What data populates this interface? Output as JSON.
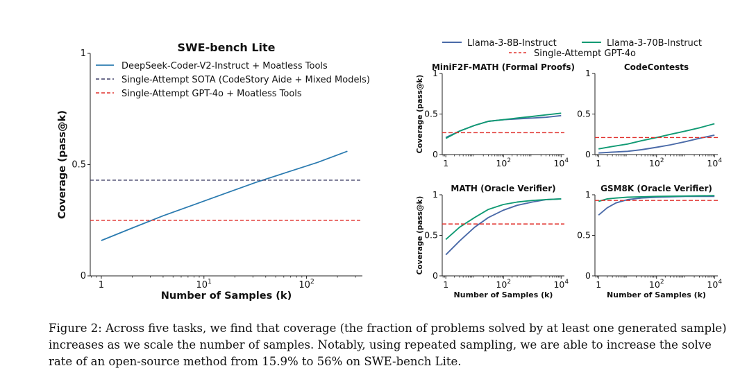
{
  "caption": {
    "label": "Figure 2:",
    "text": "Across five tasks, we find that coverage (the fraction of problems solved by at least one generated sample) increases as we scale the number of samples. Notably, using repeated sampling, we are able to increase the solve rate of an open-source method from 15.9% to 56% on SWE-bench Lite."
  },
  "colors": {
    "steel_blue": "#2b7bb0",
    "llama8b": "#4a6aa8",
    "llama70b": "#109a73",
    "sota_dash": "#3d3d66",
    "gpt4o_dash": "#e0302c"
  },
  "shared_legend": {
    "items": [
      "Llama-3-8B-Instruct",
      "Llama-3-70B-Instruct",
      "Single-Attempt GPT-4o"
    ]
  },
  "chart_data": [
    {
      "id": "swe",
      "type": "line",
      "title": "SWE-bench Lite",
      "xlabel": "Number of Samples (k)",
      "ylabel": "Coverage (pass@k)",
      "xscale": "log",
      "xlim": [
        0.78,
        350
      ],
      "ylim": [
        0,
        1
      ],
      "xticks": [
        1,
        10,
        100
      ],
      "xtick_labels": [
        {
          "base": "1",
          "exp": ""
        },
        {
          "base": "10",
          "exp": "1"
        },
        {
          "base": "10",
          "exp": "2"
        }
      ],
      "yticks": [
        0,
        0.5,
        1
      ],
      "ytick_labels": [
        "0",
        "0.5",
        "1"
      ],
      "legend_position": "top-left",
      "series": [
        {
          "name": "DeepSeek-Coder-V2-Instruct + Moatless Tools",
          "style": "solid",
          "color": "#2b7bb0",
          "x": [
            1,
            2,
            4,
            8,
            16,
            32,
            64,
            128,
            250
          ],
          "y": [
            0.159,
            0.215,
            0.27,
            0.32,
            0.37,
            0.42,
            0.465,
            0.51,
            0.56
          ]
        },
        {
          "name": "Single-Attempt SOTA (CodeStory Aide + Mixed Models)",
          "style": "dashed",
          "color": "#3d3d66",
          "constant": 0.43
        },
        {
          "name": "Single-Attempt GPT-4o + Moatless Tools",
          "style": "dashed",
          "color": "#e0302c",
          "constant": 0.25
        }
      ]
    },
    {
      "id": "minif2f",
      "type": "line",
      "title": "MiniF2F-MATH (Formal Proofs)",
      "xlabel": "",
      "ylabel": "Coverage (pass@k)",
      "xscale": "log",
      "xlim": [
        0.75,
        13000
      ],
      "ylim": [
        0,
        1
      ],
      "xticks": [
        1,
        100,
        10000
      ],
      "xtick_labels": [
        {
          "base": "1",
          "exp": ""
        },
        {
          "base": "10",
          "exp": "2"
        },
        {
          "base": "10",
          "exp": "4"
        }
      ],
      "yticks": [
        0,
        0.5,
        1
      ],
      "ytick_labels": [
        "0",
        "0.5",
        "1"
      ],
      "series": [
        {
          "name": "Llama-3-8B-Instruct",
          "style": "solid",
          "color": "#4a6aa8",
          "x": [
            1,
            3,
            10,
            30,
            100,
            300,
            1000,
            3000,
            10000
          ],
          "y": [
            0.21,
            0.29,
            0.36,
            0.41,
            0.43,
            0.44,
            0.45,
            0.46,
            0.48
          ]
        },
        {
          "name": "Llama-3-70B-Instruct",
          "style": "solid",
          "color": "#109a73",
          "x": [
            1,
            3,
            10,
            30,
            100,
            300,
            1000,
            3000,
            10000
          ],
          "y": [
            0.2,
            0.29,
            0.36,
            0.41,
            0.43,
            0.45,
            0.47,
            0.49,
            0.51
          ]
        },
        {
          "name": "Single-Attempt GPT-4o",
          "style": "dashed",
          "color": "#e0302c",
          "constant": 0.27
        }
      ]
    },
    {
      "id": "codecontests",
      "type": "line",
      "title": "CodeContests",
      "xlabel": "",
      "ylabel": "",
      "xscale": "log",
      "xlim": [
        0.75,
        13000
      ],
      "ylim": [
        0,
        1
      ],
      "xticks": [
        1,
        100,
        10000
      ],
      "xtick_labels": [
        {
          "base": "1",
          "exp": ""
        },
        {
          "base": "10",
          "exp": "2"
        },
        {
          "base": "10",
          "exp": "4"
        }
      ],
      "yticks": [
        0,
        0.5,
        1
      ],
      "ytick_labels": [
        "0",
        "0.5",
        "1"
      ],
      "series": [
        {
          "name": "Llama-3-8B-Instruct",
          "style": "solid",
          "color": "#4a6aa8",
          "x": [
            1,
            3,
            10,
            30,
            100,
            300,
            1000,
            3000,
            10000
          ],
          "y": [
            0.02,
            0.03,
            0.04,
            0.06,
            0.09,
            0.12,
            0.16,
            0.2,
            0.24
          ]
        },
        {
          "name": "Llama-3-70B-Instruct",
          "style": "solid",
          "color": "#109a73",
          "x": [
            1,
            3,
            10,
            30,
            100,
            300,
            1000,
            3000,
            10000
          ],
          "y": [
            0.07,
            0.1,
            0.13,
            0.17,
            0.21,
            0.25,
            0.29,
            0.33,
            0.38
          ]
        },
        {
          "name": "Single-Attempt GPT-4o",
          "style": "dashed",
          "color": "#e0302c",
          "constant": 0.21
        }
      ]
    },
    {
      "id": "math",
      "type": "line",
      "title": "MATH (Oracle Verifier)",
      "xlabel": "Number of Samples (k)",
      "ylabel": "Coverage (pass@k)",
      "xscale": "log",
      "xlim": [
        0.75,
        13000
      ],
      "ylim": [
        0,
        1
      ],
      "xticks": [
        1,
        100,
        10000
      ],
      "xtick_labels": [
        {
          "base": "1",
          "exp": ""
        },
        {
          "base": "10",
          "exp": "2"
        },
        {
          "base": "10",
          "exp": "4"
        }
      ],
      "yticks": [
        0,
        0.5,
        1
      ],
      "ytick_labels": [
        "0",
        "0.5",
        "1"
      ],
      "series": [
        {
          "name": "Llama-3-8B-Instruct",
          "style": "solid",
          "color": "#4a6aa8",
          "x": [
            1,
            3,
            10,
            30,
            100,
            300,
            1000,
            3000,
            10000
          ],
          "y": [
            0.26,
            0.43,
            0.6,
            0.72,
            0.81,
            0.87,
            0.91,
            0.94,
            0.95
          ]
        },
        {
          "name": "Llama-3-70B-Instruct",
          "style": "solid",
          "color": "#109a73",
          "x": [
            1,
            3,
            10,
            30,
            100,
            300,
            1000,
            3000,
            10000
          ],
          "y": [
            0.45,
            0.6,
            0.72,
            0.82,
            0.88,
            0.91,
            0.93,
            0.94,
            0.95
          ]
        },
        {
          "name": "Single-Attempt GPT-4o",
          "style": "dashed",
          "color": "#e0302c",
          "constant": 0.64
        }
      ]
    },
    {
      "id": "gsm8k",
      "type": "line",
      "title": "GSM8K (Oracle Verifier)",
      "xlabel": "Number of Samples (k)",
      "ylabel": "",
      "xscale": "log",
      "xlim": [
        0.75,
        13000
      ],
      "ylim": [
        0,
        1
      ],
      "xticks": [
        1,
        100,
        10000
      ],
      "xtick_labels": [
        {
          "base": "1",
          "exp": ""
        },
        {
          "base": "10",
          "exp": "2"
        },
        {
          "base": "10",
          "exp": "4"
        }
      ],
      "yticks": [
        0,
        0.5,
        1
      ],
      "ytick_labels": [
        "0",
        "0.5",
        "1"
      ],
      "series": [
        {
          "name": "Llama-3-8B-Instruct",
          "style": "solid",
          "color": "#4a6aa8",
          "x": [
            1,
            2,
            4,
            10,
            30,
            100,
            1000,
            10000
          ],
          "y": [
            0.75,
            0.84,
            0.9,
            0.94,
            0.96,
            0.97,
            0.98,
            0.98
          ]
        },
        {
          "name": "Llama-3-70B-Instruct",
          "style": "solid",
          "color": "#109a73",
          "x": [
            1,
            2,
            4,
            10,
            30,
            100,
            1000,
            10000
          ],
          "y": [
            0.92,
            0.95,
            0.96,
            0.97,
            0.975,
            0.98,
            0.985,
            0.99
          ]
        },
        {
          "name": "Single-Attempt GPT-4o",
          "style": "dashed",
          "color": "#e0302c",
          "constant": 0.93
        }
      ]
    }
  ]
}
